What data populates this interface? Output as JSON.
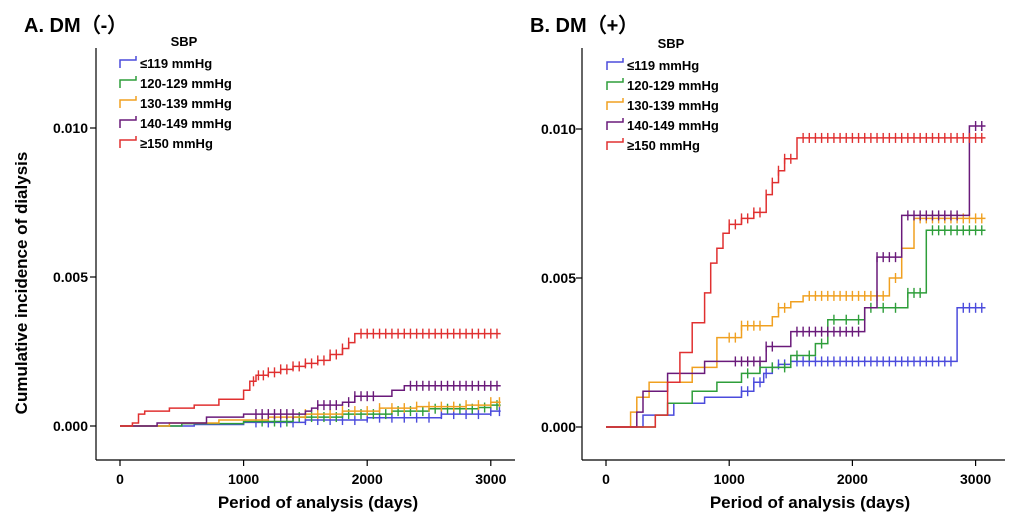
{
  "figure": {
    "ylabel": "Cumulative incidence of dialysis"
  },
  "chart_data": [
    {
      "type": "line",
      "panel_title": "A. DM（-）",
      "title": "",
      "xlabel": "Period of analysis (days)",
      "ylabel": "Cumulative incidence of dialysis",
      "xlim": [
        0,
        3100
      ],
      "ylim": [
        0,
        0.012
      ],
      "x_ticks": [
        0,
        1000,
        2000,
        3000
      ],
      "x_tick_labels": [
        "0",
        "1000",
        "2000",
        "3000"
      ],
      "y_ticks": [
        0,
        0.005,
        0.01
      ],
      "y_tick_labels": [
        "0.000",
        "0.005",
        "0.010"
      ],
      "legend_title": "SBP",
      "legend_position": "top-left",
      "series": [
        {
          "name": "≤119 mmHg",
          "color": "#4b4bdc",
          "x": [
            0,
            600,
            1000,
            1500,
            2000,
            2600,
            3000,
            3080
          ],
          "y": [
            0,
            5e-05,
            0.00012,
            0.0002,
            0.00028,
            0.0004,
            0.0005,
            0.0005
          ],
          "censored": [
            1100,
            1200,
            1300,
            1400,
            1500,
            1600,
            1700,
            1800,
            1900,
            2000,
            2100,
            2200,
            2300,
            2400,
            2500,
            2600,
            2700,
            2800,
            2900,
            3000,
            3070
          ]
        },
        {
          "name": "120-129 mmHg",
          "color": "#2e9e3a",
          "x": [
            0,
            500,
            1000,
            1400,
            1800,
            2200,
            2500,
            2900,
            3000,
            3080
          ],
          "y": [
            0,
            8e-05,
            0.00015,
            0.0003,
            0.0004,
            0.0005,
            0.00058,
            0.00062,
            0.0007,
            0.0007
          ],
          "censored": [
            1150,
            1250,
            1350,
            1450,
            1550,
            1650,
            1750,
            1850,
            1950,
            2050,
            2150,
            2250,
            2350,
            2450,
            2550,
            2650,
            2750,
            2850,
            2950,
            3050
          ]
        },
        {
          "name": "130-139 mmHg",
          "color": "#f0a020",
          "x": [
            0,
            400,
            800,
            1200,
            1500,
            1800,
            2100,
            2400,
            2800,
            3000,
            3080
          ],
          "y": [
            0,
            0.0001,
            0.0002,
            0.0003,
            0.0004,
            0.0005,
            0.0006,
            0.00065,
            0.0007,
            0.0008,
            0.0008
          ],
          "censored": [
            1500,
            1600,
            1700,
            1800,
            1900,
            2000,
            2100,
            2200,
            2300,
            2400,
            2500,
            2600,
            2700,
            2800,
            2900,
            3000,
            3070
          ]
        },
        {
          "name": "140-149 mmHg",
          "color": "#6a1a7a",
          "x": [
            0,
            300,
            700,
            1000,
            1450,
            1500,
            1550,
            1600,
            1800,
            1900,
            2100,
            2200,
            2300,
            3080
          ],
          "y": [
            0,
            0.0001,
            0.0003,
            0.0004,
            0.0004,
            0.0005,
            0.0006,
            0.0007,
            0.0008,
            0.001,
            0.001,
            0.0012,
            0.00135,
            0.00135
          ],
          "censored": [
            1100,
            1150,
            1200,
            1250,
            1300,
            1350,
            1400,
            1600,
            1650,
            1700,
            1750,
            1850,
            1900,
            1950,
            2000,
            2050,
            2350,
            2400,
            2450,
            2500,
            2550,
            2600,
            2650,
            2700,
            2750,
            2800,
            2850,
            2900,
            2950,
            3000,
            3050
          ]
        },
        {
          "name": "≥150 mmHg",
          "color": "#e03030",
          "x": [
            0,
            100,
            150,
            200,
            400,
            600,
            800,
            1000,
            1050,
            1100,
            1200,
            1300,
            1400,
            1500,
            1600,
            1700,
            1800,
            1850,
            1900,
            3080
          ],
          "y": [
            0,
            0.0001,
            0.0004,
            0.0005,
            0.0006,
            0.0007,
            0.0009,
            0.0012,
            0.0015,
            0.0017,
            0.0018,
            0.0019,
            0.002,
            0.0021,
            0.0022,
            0.0024,
            0.0026,
            0.0028,
            0.0031,
            0.0031
          ],
          "censored": [
            1080,
            1120,
            1160,
            1200,
            1250,
            1300,
            1350,
            1400,
            1450,
            1500,
            1550,
            1600,
            1650,
            1700,
            1750,
            1800,
            1850,
            1950,
            2000,
            2050,
            2100,
            2150,
            2200,
            2250,
            2300,
            2350,
            2400,
            2450,
            2500,
            2550,
            2600,
            2650,
            2700,
            2750,
            2800,
            2850,
            2900,
            2950,
            3000,
            3050
          ]
        }
      ]
    },
    {
      "type": "line",
      "panel_title": "B. DM（+）",
      "title": "",
      "xlabel": "Period of analysis (days)",
      "ylabel": "",
      "xlim": [
        0,
        3100
      ],
      "ylim": [
        0,
        0.012
      ],
      "x_ticks": [
        0,
        1000,
        2000,
        3000
      ],
      "x_tick_labels": [
        "0",
        "1000",
        "2000",
        "3000"
      ],
      "y_ticks": [
        0,
        0.005,
        0.01
      ],
      "y_tick_labels": [
        "0.000",
        "0.005",
        "0.010"
      ],
      "legend_title": "SBP",
      "legend_position": "top-left",
      "series": [
        {
          "name": "≤119 mmHg",
          "color": "#4b4bdc",
          "x": [
            0,
            300,
            550,
            800,
            1100,
            1200,
            1280,
            1350,
            1400,
            1500,
            2850,
            3080
          ],
          "y": [
            0,
            0.0004,
            0.0008,
            0.001,
            0.0012,
            0.0015,
            0.0018,
            0.002,
            0.0021,
            0.0022,
            0.004,
            0.004
          ],
          "censored": [
            1100,
            1150,
            1200,
            1250,
            1300,
            1350,
            1400,
            1450,
            1500,
            1550,
            1600,
            1650,
            1700,
            1750,
            1800,
            1850,
            1900,
            1950,
            2000,
            2050,
            2100,
            2150,
            2200,
            2250,
            2300,
            2350,
            2400,
            2450,
            2500,
            2550,
            2600,
            2650,
            2700,
            2750,
            2800,
            2900,
            2950,
            3000,
            3050
          ]
        },
        {
          "name": "120-129 mmHg",
          "color": "#2e9e3a",
          "x": [
            0,
            400,
            500,
            700,
            900,
            1100,
            1250,
            1500,
            1700,
            1800,
            2100,
            2450,
            2600,
            3080
          ],
          "y": [
            0,
            0.0004,
            0.0008,
            0.0012,
            0.0015,
            0.0018,
            0.002,
            0.0024,
            0.0028,
            0.0036,
            0.004,
            0.0045,
            0.0066,
            0.0066
          ],
          "censored": [
            1150,
            1250,
            1350,
            1450,
            1550,
            1650,
            1750,
            1850,
            1950,
            2050,
            2150,
            2250,
            2350,
            2450,
            2500,
            2550,
            2650,
            2700,
            2750,
            2800,
            2850,
            2900,
            2950,
            3000,
            3050
          ]
        },
        {
          "name": "130-139 mmHg",
          "color": "#f0a020",
          "x": [
            0,
            200,
            250,
            350,
            700,
            900,
            1100,
            1300,
            1350,
            1400,
            1500,
            1600,
            2300,
            2400,
            2500,
            3080
          ],
          "y": [
            0,
            0.0005,
            0.001,
            0.0015,
            0.002,
            0.003,
            0.0034,
            0.0034,
            0.0037,
            0.004,
            0.0042,
            0.0044,
            0.005,
            0.006,
            0.007,
            0.007
          ],
          "censored": [
            1000,
            1050,
            1100,
            1150,
            1200,
            1250,
            1400,
            1450,
            1650,
            1700,
            1750,
            1800,
            1850,
            1900,
            1950,
            2000,
            2050,
            2100,
            2150,
            2200,
            2250,
            2350,
            2550,
            2600,
            2650,
            2700,
            2750,
            2800,
            2850,
            2900,
            2950,
            3000,
            3050
          ]
        },
        {
          "name": "140-149 mmHg",
          "color": "#6a1a7a",
          "x": [
            0,
            250,
            300,
            500,
            800,
            1300,
            1500,
            2100,
            2200,
            2400,
            2900,
            2950,
            3080
          ],
          "y": [
            0,
            0.0005,
            0.0012,
            0.0018,
            0.0022,
            0.0027,
            0.0032,
            0.004,
            0.0057,
            0.0071,
            0.0071,
            0.0101,
            0.0101
          ],
          "censored": [
            1050,
            1100,
            1150,
            1200,
            1250,
            1300,
            1350,
            1550,
            1600,
            1650,
            1700,
            1750,
            1800,
            1850,
            1900,
            1950,
            2000,
            2050,
            2200,
            2250,
            2300,
            2350,
            2450,
            2500,
            2550,
            2600,
            2650,
            2700,
            2750,
            2800,
            2850,
            3000,
            3050
          ]
        },
        {
          "name": "≥150 mmHg",
          "color": "#e03030",
          "x": [
            0,
            400,
            500,
            600,
            700,
            800,
            850,
            900,
            950,
            1000,
            1100,
            1200,
            1300,
            1350,
            1400,
            1450,
            1550,
            3080
          ],
          "y": [
            0,
            0.0004,
            0.0015,
            0.0025,
            0.0035,
            0.0045,
            0.0055,
            0.006,
            0.0065,
            0.0068,
            0.007,
            0.0072,
            0.0078,
            0.0082,
            0.0086,
            0.009,
            0.0097,
            0.0097
          ],
          "censored": [
            1000,
            1050,
            1100,
            1150,
            1200,
            1250,
            1300,
            1350,
            1400,
            1450,
            1500,
            1600,
            1650,
            1700,
            1750,
            1800,
            1850,
            1900,
            1950,
            2000,
            2050,
            2100,
            2150,
            2200,
            2250,
            2300,
            2350,
            2400,
            2450,
            2500,
            2550,
            2600,
            2650,
            2700,
            2750,
            2800,
            2850,
            2900,
            2950,
            3000,
            3050
          ]
        }
      ]
    }
  ]
}
